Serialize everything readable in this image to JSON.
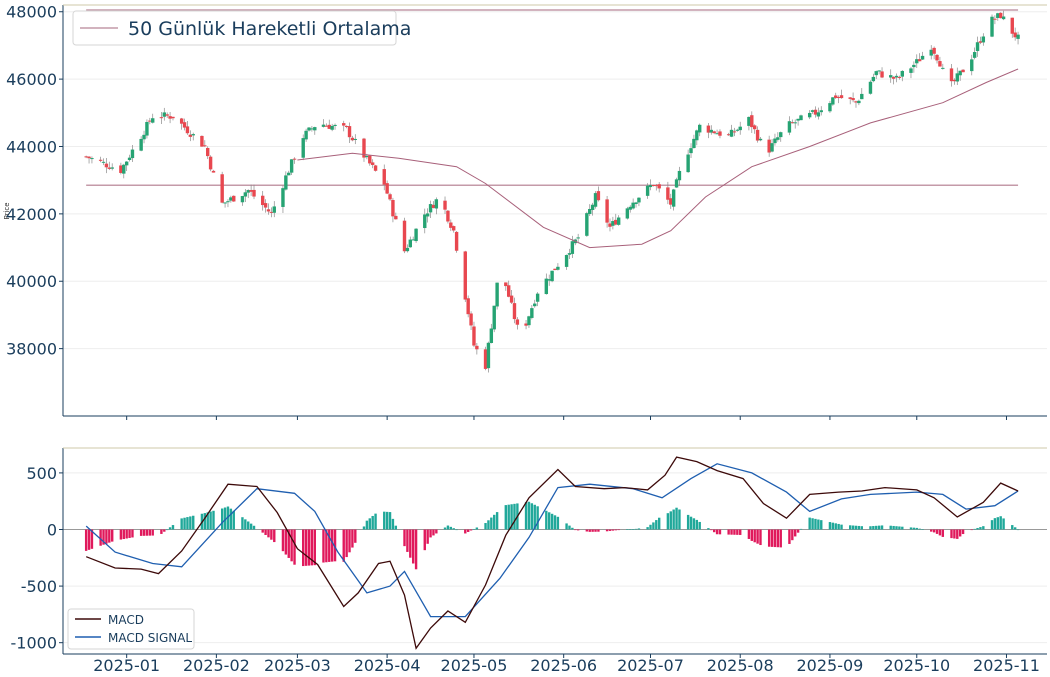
{
  "chart_data": [
    {
      "type": "candlestick",
      "ylabel": "Price",
      "ylim": [
        36000,
        48200
      ],
      "yticks": [
        38000,
        40000,
        42000,
        44000,
        46000,
        48000
      ],
      "legend": {
        "position": "top-left",
        "entries": [
          "50 Günlük Hareketli Ortalama"
        ]
      },
      "grid": true,
      "horizontal_lines": [
        48050,
        42850
      ],
      "colors": {
        "up": "#26a373",
        "down": "#e8474f",
        "ma": "#a8607a",
        "hline": "#c49aa8"
      },
      "close_anchors": [
        [
          "2024-12-18",
          43700
        ],
        [
          "2024-12-30",
          43300
        ],
        [
          "2025-01-10",
          44900
        ],
        [
          "2025-01-17",
          44900
        ],
        [
          "2025-01-28",
          44000
        ],
        [
          "2025-02-03",
          42300
        ],
        [
          "2025-02-12",
          42700
        ],
        [
          "2025-02-20",
          42000
        ],
        [
          "2025-02-25",
          43100
        ],
        [
          "2025-03-03",
          44300
        ],
        [
          "2025-03-08",
          44700
        ],
        [
          "2025-03-18",
          44500
        ],
        [
          "2025-03-25",
          43600
        ],
        [
          "2025-03-31",
          42900
        ],
        [
          "2025-04-07",
          40900
        ],
        [
          "2025-04-14",
          42000
        ],
        [
          "2025-04-19",
          42500
        ],
        [
          "2025-04-24",
          41500
        ],
        [
          "2025-05-01",
          38100
        ],
        [
          "2025-05-05",
          37500
        ],
        [
          "2025-05-10",
          40500
        ],
        [
          "2025-05-17",
          38300
        ],
        [
          "2025-05-23",
          39700
        ],
        [
          "2025-05-30",
          40500
        ],
        [
          "2025-06-06",
          41300
        ],
        [
          "2025-06-12",
          42500
        ],
        [
          "2025-06-17",
          41600
        ],
        [
          "2025-06-24",
          42300
        ],
        [
          "2025-07-02",
          42900
        ],
        [
          "2025-07-08",
          42300
        ],
        [
          "2025-07-12",
          43500
        ],
        [
          "2025-07-18",
          44600
        ],
        [
          "2025-07-28",
          44300
        ],
        [
          "2025-08-04",
          44800
        ],
        [
          "2025-08-10",
          43800
        ],
        [
          "2025-08-17",
          44600
        ],
        [
          "2025-08-27",
          45000
        ],
        [
          "2025-09-03",
          45500
        ],
        [
          "2025-09-10",
          45300
        ],
        [
          "2025-09-17",
          46200
        ],
        [
          "2025-09-24",
          46000
        ],
        [
          "2025-10-01",
          46500
        ],
        [
          "2025-10-06",
          47000
        ],
        [
          "2025-10-09",
          46500
        ],
        [
          "2025-10-12",
          45700
        ],
        [
          "2025-10-19",
          46500
        ],
        [
          "2025-10-26",
          47700
        ],
        [
          "2025-10-30",
          47900
        ],
        [
          "2025-11-03",
          47400
        ],
        [
          "2025-11-05",
          47200
        ]
      ],
      "ma50": [
        [
          "2025-03-01",
          43600
        ],
        [
          "2025-03-20",
          43800
        ],
        [
          "2025-04-05",
          43650
        ],
        [
          "2025-04-25",
          43400
        ],
        [
          "2025-05-05",
          42900
        ],
        [
          "2025-05-25",
          41600
        ],
        [
          "2025-06-10",
          41000
        ],
        [
          "2025-06-28",
          41100
        ],
        [
          "2025-07-08",
          41500
        ],
        [
          "2025-07-20",
          42500
        ],
        [
          "2025-08-05",
          43400
        ],
        [
          "2025-08-25",
          44000
        ],
        [
          "2025-09-15",
          44700
        ],
        [
          "2025-10-10",
          45300
        ],
        [
          "2025-10-25",
          45900
        ],
        [
          "2025-11-05",
          46300
        ]
      ]
    },
    {
      "type": "line",
      "ylim": [
        -1100,
        720
      ],
      "yticks": [
        -1000,
        -500,
        0,
        500
      ],
      "legend": {
        "position": "bottom-left",
        "entries": [
          "MACD",
          "MACD SIGNAL"
        ]
      },
      "grid": true,
      "colors": {
        "macd": "#3d0a0a",
        "signal": "#1f5fb0",
        "hist_pos": "#20a89a",
        "hist_neg": "#e0195c"
      },
      "series": [
        {
          "name": "MACD",
          "points": [
            [
              "2024-12-18",
              -240
            ],
            [
              "2024-12-28",
              -340
            ],
            [
              "2025-01-06",
              -350
            ],
            [
              "2025-01-12",
              -390
            ],
            [
              "2025-01-20",
              -190
            ],
            [
              "2025-01-28",
              100
            ],
            [
              "2025-02-05",
              400
            ],
            [
              "2025-02-15",
              380
            ],
            [
              "2025-02-22",
              150
            ],
            [
              "2025-03-01",
              -170
            ],
            [
              "2025-03-08",
              -310
            ],
            [
              "2025-03-17",
              -680
            ],
            [
              "2025-03-22",
              -560
            ],
            [
              "2025-03-29",
              -300
            ],
            [
              "2025-04-02",
              -280
            ],
            [
              "2025-04-07",
              -580
            ],
            [
              "2025-04-11",
              -1050
            ],
            [
              "2025-04-16",
              -870
            ],
            [
              "2025-04-22",
              -720
            ],
            [
              "2025-04-28",
              -820
            ],
            [
              "2025-05-05",
              -490
            ],
            [
              "2025-05-12",
              -50
            ],
            [
              "2025-05-20",
              280
            ],
            [
              "2025-05-30",
              530
            ],
            [
              "2025-06-05",
              380
            ],
            [
              "2025-06-15",
              360
            ],
            [
              "2025-06-22",
              370
            ],
            [
              "2025-06-30",
              350
            ],
            [
              "2025-07-06",
              480
            ],
            [
              "2025-07-10",
              640
            ],
            [
              "2025-07-17",
              600
            ],
            [
              "2025-07-24",
              520
            ],
            [
              "2025-08-02",
              450
            ],
            [
              "2025-08-09",
              230
            ],
            [
              "2025-08-17",
              100
            ],
            [
              "2025-08-25",
              310
            ],
            [
              "2025-09-04",
              330
            ],
            [
              "2025-09-12",
              340
            ],
            [
              "2025-09-20",
              370
            ],
            [
              "2025-10-01",
              350
            ],
            [
              "2025-10-07",
              280
            ],
            [
              "2025-10-15",
              110
            ],
            [
              "2025-10-24",
              240
            ],
            [
              "2025-10-30",
              410
            ],
            [
              "2025-11-05",
              340
            ]
          ]
        },
        {
          "name": "MACD SIGNAL",
          "points": [
            [
              "2024-12-18",
              30
            ],
            [
              "2024-12-28",
              -200
            ],
            [
              "2025-01-10",
              -300
            ],
            [
              "2025-01-20",
              -330
            ],
            [
              "2025-02-03",
              60
            ],
            [
              "2025-02-15",
              360
            ],
            [
              "2025-02-28",
              320
            ],
            [
              "2025-03-07",
              160
            ],
            [
              "2025-03-15",
              -200
            ],
            [
              "2025-03-25",
              -560
            ],
            [
              "2025-04-02",
              -500
            ],
            [
              "2025-04-07",
              -370
            ],
            [
              "2025-04-16",
              -770
            ],
            [
              "2025-04-28",
              -770
            ],
            [
              "2025-05-10",
              -430
            ],
            [
              "2025-05-20",
              -70
            ],
            [
              "2025-05-30",
              370
            ],
            [
              "2025-06-10",
              400
            ],
            [
              "2025-06-25",
              360
            ],
            [
              "2025-07-05",
              280
            ],
            [
              "2025-07-15",
              450
            ],
            [
              "2025-07-24",
              580
            ],
            [
              "2025-08-05",
              500
            ],
            [
              "2025-08-17",
              330
            ],
            [
              "2025-08-25",
              160
            ],
            [
              "2025-09-05",
              270
            ],
            [
              "2025-09-15",
              310
            ],
            [
              "2025-10-01",
              330
            ],
            [
              "2025-10-10",
              310
            ],
            [
              "2025-10-18",
              180
            ],
            [
              "2025-10-28",
              210
            ],
            [
              "2025-11-05",
              340
            ]
          ]
        }
      ]
    }
  ],
  "x_axis": {
    "ticks": [
      {
        "label": "2025-01",
        "date": "2025-01-01"
      },
      {
        "label": "2025-02",
        "date": "2025-02-01"
      },
      {
        "label": "2025-03",
        "date": "2025-03-01"
      },
      {
        "label": "2025-04",
        "date": "2025-04-01"
      },
      {
        "label": "2025-05",
        "date": "2025-05-01"
      },
      {
        "label": "2025-06",
        "date": "2025-06-01"
      },
      {
        "label": "2025-07",
        "date": "2025-07-01"
      },
      {
        "label": "2025-08",
        "date": "2025-08-01"
      },
      {
        "label": "2025-09",
        "date": "2025-09-01"
      },
      {
        "label": "2025-10",
        "date": "2025-10-01"
      },
      {
        "label": "2025-11",
        "date": "2025-11-01"
      }
    ]
  }
}
